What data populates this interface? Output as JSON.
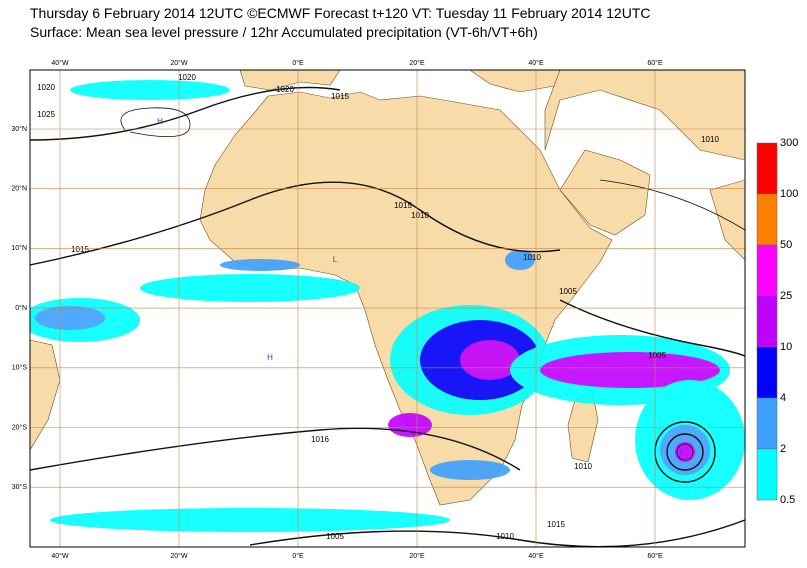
{
  "header": {
    "title": "Thursday 6 February 2014 12UTC ©ECMWF Forecast t+120 VT: Tuesday 11 February 2014 12UTC",
    "subtitle": "Surface: Mean sea level pressure / 12hr Accumulated precipitation (VT-6h/VT+6h)"
  },
  "map": {
    "longitude_labels": [
      "40°W",
      "20°W",
      "0°E",
      "20°E",
      "40°E",
      "60°E"
    ],
    "latitude_labels": [
      "30°N",
      "20°N",
      "10°N",
      "0°N",
      "10°S",
      "20°S",
      "30°S"
    ],
    "isobar_labels": [
      "1020",
      "1020",
      "1020",
      "1025",
      "1015",
      "1015",
      "1015",
      "1010",
      "1010",
      "1005",
      "1005",
      "1010",
      "1016",
      "1010",
      "1015",
      "1005",
      "1010"
    ],
    "pressure_centres": [
      "H",
      "L",
      "H",
      "L"
    ]
  },
  "legend": {
    "levels": [
      300,
      100,
      50,
      25,
      10,
      4,
      2,
      0.5
    ],
    "colors": [
      "#ff0000",
      "#ff8000",
      "#ff00ff",
      "#c000ff",
      "#0000ff",
      "#3ca0ff",
      "#00ffff"
    ]
  }
}
